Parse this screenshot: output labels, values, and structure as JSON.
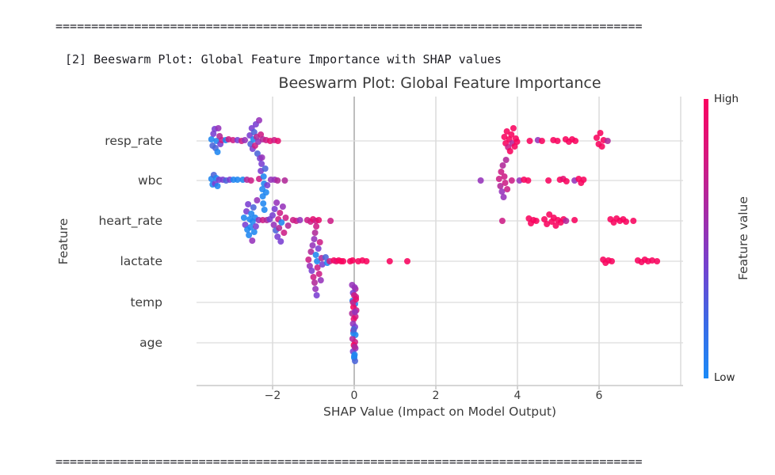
{
  "separators": {
    "top": "==================================================================================",
    "bottom": "=================================================================================="
  },
  "caption": "[2] Beeswarm Plot: Global Feature Importance with SHAP values",
  "chart_data": {
    "type": "scatter",
    "variant": "beeswarm-shap-summary",
    "title": "Beeswarm Plot: Global Feature Importance",
    "xlabel": "SHAP Value (Impact on Model Output)",
    "ylabel": "Feature",
    "features": [
      "resp_rate",
      "wbc",
      "heart_rate",
      "lactate",
      "temp",
      "age"
    ],
    "xtick_values": [
      -2,
      0,
      2,
      4,
      6
    ],
    "xtick_labels": [
      "−2",
      "0",
      "2",
      "4",
      "6"
    ],
    "xlim": [
      -3.86,
      8.06
    ],
    "grid": true,
    "colorbar": {
      "high_label": "High",
      "low_label": "Low",
      "title": "Feature value",
      "gradient": [
        "#fa0360",
        "#d8177e",
        "#a72aa5",
        "#7442cf",
        "#3a6ae6",
        "#1b8af7"
      ]
    },
    "palette": [
      "#1f86f0",
      "#4b64da",
      "#7a3fd1",
      "#9633bb",
      "#b02899",
      "#cd1e86",
      "#e60f70",
      "#f8055f"
    ],
    "point_radius": 4,
    "points": {
      "resp_rate": [
        [
          -3.5,
          -2,
          0
        ],
        [
          -3.47,
          6,
          1
        ],
        [
          -3.45,
          -9,
          2
        ],
        [
          -3.42,
          -15,
          2
        ],
        [
          -3.4,
          9,
          1
        ],
        [
          -3.37,
          0,
          0
        ],
        [
          -3.35,
          14,
          0
        ],
        [
          -3.33,
          -16,
          3
        ],
        [
          -3.3,
          -6,
          4
        ],
        [
          -3.28,
          4,
          2
        ],
        [
          -3.24,
          -1,
          5
        ],
        [
          -3.15,
          -1,
          0
        ],
        [
          -3.08,
          -2,
          5
        ],
        [
          -2.97,
          -1,
          5
        ],
        [
          -2.86,
          -1,
          2
        ],
        [
          -2.76,
          0,
          5
        ],
        [
          -2.68,
          -1,
          3
        ],
        [
          -2.56,
          -7,
          2
        ],
        [
          -2.54,
          4,
          1
        ],
        [
          -2.51,
          -16,
          2
        ],
        [
          -2.49,
          10,
          2
        ],
        [
          -2.47,
          -2,
          0
        ],
        [
          -2.45,
          -11,
          1
        ],
        [
          -2.43,
          6,
          5
        ],
        [
          -2.41,
          -21,
          2
        ],
        [
          -2.39,
          -5,
          4
        ],
        [
          -2.37,
          16,
          1
        ],
        [
          -2.35,
          1,
          3
        ],
        [
          -2.33,
          -26,
          3
        ],
        [
          -2.31,
          22,
          2
        ],
        [
          -2.29,
          -8,
          5
        ],
        [
          -2.24,
          -2,
          4
        ],
        [
          -2.16,
          -1,
          5
        ],
        [
          -2.06,
          0,
          6
        ],
        [
          -1.96,
          -1,
          5
        ],
        [
          -1.87,
          0,
          6
        ],
        [
          3.68,
          -5,
          7
        ],
        [
          3.71,
          3,
          7
        ],
        [
          3.74,
          -12,
          7
        ],
        [
          3.77,
          8,
          5
        ],
        [
          3.8,
          -2,
          7
        ],
        [
          3.82,
          13,
          7
        ],
        [
          3.85,
          -8,
          7
        ],
        [
          3.87,
          3,
          4
        ],
        [
          3.9,
          -16,
          7
        ],
        [
          3.93,
          7,
          7
        ],
        [
          3.96,
          -3,
          7
        ],
        [
          3.99,
          1,
          7
        ],
        [
          4.3,
          0,
          7
        ],
        [
          4.5,
          -1,
          3
        ],
        [
          4.6,
          0,
          7
        ],
        [
          4.88,
          -1,
          7
        ],
        [
          4.98,
          0,
          7
        ],
        [
          5.18,
          -2,
          7
        ],
        [
          5.26,
          1,
          7
        ],
        [
          5.34,
          -2,
          7
        ],
        [
          5.42,
          0,
          7
        ],
        [
          5.94,
          -4,
          7
        ],
        [
          5.99,
          4,
          7
        ],
        [
          6.03,
          -10,
          7
        ],
        [
          6.07,
          7,
          7
        ],
        [
          6.11,
          -1,
          7
        ],
        [
          6.21,
          0,
          4
        ]
      ],
      "wbc": [
        [
          -3.5,
          -2,
          0
        ],
        [
          -3.47,
          5,
          0
        ],
        [
          -3.44,
          -7,
          1
        ],
        [
          -3.41,
          4,
          2
        ],
        [
          -3.38,
          -3,
          0
        ],
        [
          -3.35,
          7,
          0
        ],
        [
          -3.31,
          -1,
          2
        ],
        [
          -3.22,
          -1,
          2
        ],
        [
          -3.14,
          0,
          1
        ],
        [
          -3.05,
          -1,
          2
        ],
        [
          -2.96,
          -1,
          0
        ],
        [
          -2.86,
          -1,
          0
        ],
        [
          -2.73,
          -1,
          0
        ],
        [
          -2.63,
          -1,
          4
        ],
        [
          -2.53,
          0,
          5
        ],
        [
          -2.33,
          -2,
          5
        ],
        [
          -2.29,
          -12,
          2
        ],
        [
          -2.27,
          -21,
          2
        ],
        [
          -2.26,
          -29,
          3
        ],
        [
          -2.25,
          11,
          0
        ],
        [
          -2.24,
          20,
          0
        ],
        [
          -2.23,
          29,
          0
        ],
        [
          -2.22,
          -5,
          0
        ],
        [
          -2.21,
          4,
          0
        ],
        [
          -2.2,
          37,
          0
        ],
        [
          -2.18,
          -15,
          1
        ],
        [
          -2.16,
          15,
          0
        ],
        [
          -2.13,
          6,
          2
        ],
        [
          -2.04,
          -1,
          3
        ],
        [
          -1.95,
          -1,
          3
        ],
        [
          -1.88,
          0,
          4
        ],
        [
          -1.7,
          0,
          4
        ],
        [
          3.1,
          0,
          3
        ],
        [
          3.55,
          -2,
          5
        ],
        [
          3.58,
          7,
          4
        ],
        [
          3.6,
          -11,
          5
        ],
        [
          3.62,
          14,
          3
        ],
        [
          3.64,
          -19,
          4
        ],
        [
          3.66,
          21,
          3
        ],
        [
          3.68,
          -5,
          5
        ],
        [
          3.7,
          3,
          5
        ],
        [
          3.72,
          -26,
          4
        ],
        [
          3.75,
          11,
          5
        ],
        [
          3.86,
          0,
          5
        ],
        [
          4.05,
          0,
          3
        ],
        [
          4.16,
          -1,
          7
        ],
        [
          4.26,
          0,
          7
        ],
        [
          4.76,
          0,
          7
        ],
        [
          5.04,
          -1,
          7
        ],
        [
          5.12,
          -2,
          6
        ],
        [
          5.2,
          1,
          7
        ],
        [
          5.4,
          0,
          3
        ],
        [
          5.5,
          -2,
          7
        ],
        [
          5.56,
          3,
          7
        ],
        [
          5.62,
          -1,
          7
        ]
      ],
      "heart_rate": [
        [
          -2.7,
          -4,
          0
        ],
        [
          -2.67,
          5,
          2
        ],
        [
          -2.64,
          -12,
          2
        ],
        [
          -2.62,
          11,
          0
        ],
        [
          -2.6,
          -21,
          2
        ],
        [
          -2.58,
          18,
          0
        ],
        [
          -2.56,
          -2,
          0
        ],
        [
          -2.54,
          8,
          0
        ],
        [
          -2.52,
          -9,
          0
        ],
        [
          -2.5,
          25,
          3
        ],
        [
          -2.49,
          1,
          0
        ],
        [
          -2.47,
          -17,
          1
        ],
        [
          -2.45,
          14,
          0
        ],
        [
          -2.43,
          -4,
          0
        ],
        [
          -2.41,
          7,
          2
        ],
        [
          -2.38,
          -26,
          3
        ],
        [
          -2.34,
          -1,
          3
        ],
        [
          -2.24,
          -1,
          5
        ],
        [
          -2.14,
          -1,
          4
        ],
        [
          -2.07,
          -2,
          2
        ],
        [
          -2.0,
          -7,
          2
        ],
        [
          -1.97,
          5,
          3
        ],
        [
          -1.95,
          -15,
          2
        ],
        [
          -1.92,
          12,
          1
        ],
        [
          -1.9,
          -23,
          3
        ],
        [
          -1.88,
          20,
          2
        ],
        [
          -1.86,
          -2,
          5
        ],
        [
          -1.84,
          9,
          4
        ],
        [
          -1.82,
          -10,
          5
        ],
        [
          -1.8,
          26,
          2
        ],
        [
          -1.78,
          2,
          0
        ],
        [
          -1.75,
          -18,
          3
        ],
        [
          -1.72,
          15,
          5
        ],
        [
          -1.68,
          -4,
          5
        ],
        [
          -1.62,
          6,
          4
        ],
        [
          -1.5,
          -1,
          5
        ],
        [
          -1.42,
          0,
          5
        ],
        [
          -1.33,
          -1,
          3
        ],
        [
          -1.15,
          -1,
          5
        ],
        [
          -1.07,
          1,
          5
        ],
        [
          -1.01,
          -2,
          6
        ],
        [
          -0.94,
          0,
          5
        ],
        [
          -0.87,
          -1,
          6
        ],
        [
          -0.58,
          0,
          5
        ],
        [
          3.63,
          0,
          5
        ],
        [
          4.28,
          -3,
          7
        ],
        [
          4.33,
          3,
          7
        ],
        [
          4.39,
          -1,
          7
        ],
        [
          4.46,
          0,
          7
        ],
        [
          4.66,
          -2,
          7
        ],
        [
          4.72,
          4,
          7
        ],
        [
          4.78,
          -8,
          7
        ],
        [
          4.84,
          1,
          7
        ],
        [
          4.89,
          -4,
          7
        ],
        [
          4.94,
          6,
          7
        ],
        [
          4.99,
          -1,
          7
        ],
        [
          5.06,
          2,
          7
        ],
        [
          5.13,
          -2,
          7
        ],
        [
          5.19,
          0,
          4
        ],
        [
          5.4,
          -1,
          7
        ],
        [
          6.28,
          -2,
          7
        ],
        [
          6.36,
          2,
          7
        ],
        [
          6.43,
          -3,
          7
        ],
        [
          6.51,
          0,
          7
        ],
        [
          6.59,
          -2,
          7
        ],
        [
          6.66,
          1,
          7
        ],
        [
          6.84,
          0,
          7
        ]
      ],
      "lactate": [
        [
          -1.12,
          -2,
          5
        ],
        [
          -1.09,
          6,
          3
        ],
        [
          -1.06,
          -12,
          4
        ],
        [
          -1.04,
          12,
          2
        ],
        [
          -1.02,
          -20,
          3
        ],
        [
          -1.0,
          20,
          5
        ],
        [
          -0.98,
          -28,
          3
        ],
        [
          -0.97,
          27,
          4
        ],
        [
          -0.96,
          -36,
          4
        ],
        [
          -0.95,
          35,
          3
        ],
        [
          -0.94,
          -8,
          0
        ],
        [
          -0.93,
          -44,
          5
        ],
        [
          -0.92,
          43,
          2
        ],
        [
          -0.91,
          0,
          0
        ],
        [
          -0.9,
          8,
          5
        ],
        [
          -0.88,
          -16,
          2
        ],
        [
          -0.86,
          16,
          5
        ],
        [
          -0.84,
          -24,
          5
        ],
        [
          -0.82,
          24,
          3
        ],
        [
          -0.8,
          -4,
          4
        ],
        [
          -0.78,
          4,
          2
        ],
        [
          -0.7,
          -5,
          1
        ],
        [
          -0.66,
          2,
          0
        ],
        [
          -0.6,
          0,
          5
        ],
        [
          -0.5,
          -1,
          7
        ],
        [
          -0.44,
          0,
          6
        ],
        [
          -0.38,
          -1,
          7
        ],
        [
          -0.32,
          0,
          7
        ],
        [
          -0.27,
          0,
          7
        ],
        [
          -0.1,
          0,
          7
        ],
        [
          -0.04,
          -1,
          7
        ],
        [
          0.1,
          0,
          7
        ],
        [
          0.2,
          -1,
          7
        ],
        [
          0.3,
          0,
          7
        ],
        [
          0.87,
          0,
          7
        ],
        [
          1.3,
          0,
          7
        ],
        [
          6.1,
          -2,
          7
        ],
        [
          6.16,
          2,
          7
        ],
        [
          6.23,
          -1,
          7
        ],
        [
          6.31,
          0,
          7
        ],
        [
          6.95,
          -1,
          7
        ],
        [
          7.04,
          1,
          7
        ],
        [
          7.12,
          -2,
          7
        ],
        [
          7.2,
          0,
          7
        ],
        [
          7.3,
          -1,
          7
        ],
        [
          7.42,
          0,
          7
        ]
      ],
      "temp": [
        [
          -0.05,
          -22,
          3
        ],
        [
          0.03,
          -17,
          4
        ],
        [
          -0.03,
          -12,
          2
        ],
        [
          0.04,
          -7,
          5
        ],
        [
          -0.04,
          -2,
          0
        ],
        [
          0.02,
          2,
          0
        ],
        [
          -0.02,
          6,
          7
        ],
        [
          0.05,
          10,
          5
        ],
        [
          -0.05,
          14,
          4
        ],
        [
          0.03,
          18,
          5
        ],
        [
          -0.01,
          21,
          6
        ],
        [
          0.01,
          -19,
          3
        ],
        [
          0.0,
          -9,
          5
        ],
        [
          -0.03,
          0,
          5
        ],
        [
          0.02,
          12,
          3
        ],
        [
          0.04,
          -4,
          6
        ]
      ],
      "age": [
        [
          -0.03,
          -24,
          3
        ],
        [
          0.02,
          -20,
          2
        ],
        [
          -0.02,
          -15,
          6
        ],
        [
          0.03,
          -10,
          0
        ],
        [
          -0.04,
          -5,
          4
        ],
        [
          0.02,
          -1,
          5
        ],
        [
          -0.01,
          3,
          7
        ],
        [
          0.03,
          7,
          3
        ],
        [
          -0.03,
          11,
          2
        ],
        [
          0.01,
          15,
          0
        ],
        [
          0.0,
          19,
          0
        ],
        [
          0.02,
          23,
          1
        ],
        [
          -0.02,
          -12,
          0
        ],
        [
          0.01,
          5,
          4
        ],
        [
          0.0,
          17,
          0
        ],
        [
          -0.01,
          -17,
          1
        ]
      ]
    }
  }
}
